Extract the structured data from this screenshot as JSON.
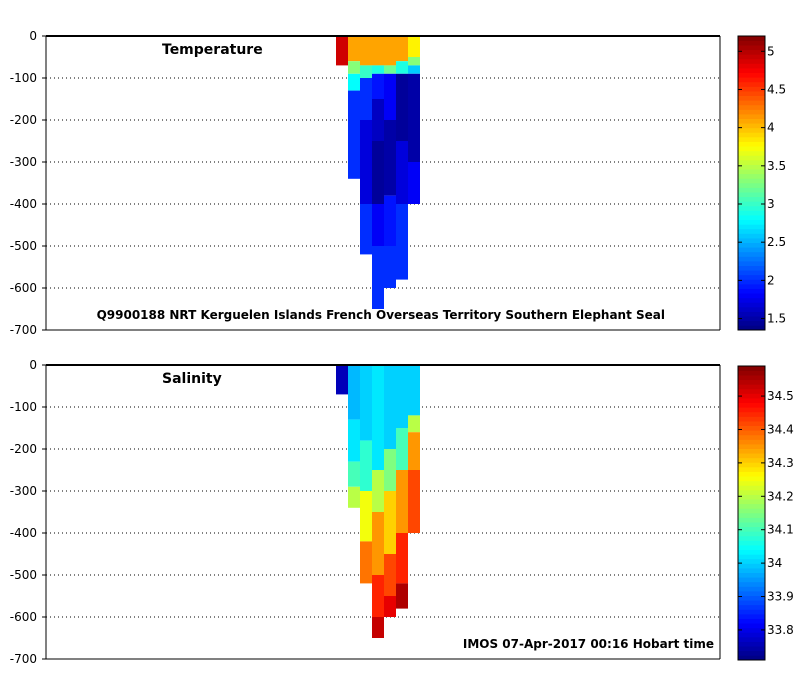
{
  "chart_data": [
    {
      "type": "heatmap",
      "title": "Temperature",
      "annotation": "Q9900188 NRT Kerguelen Islands French Overseas Territory Southern Elephant Seal",
      "ylabel": "",
      "ylim": [
        -700,
        0
      ],
      "yticks": [
        0,
        -100,
        -200,
        -300,
        -400,
        -500,
        -600,
        -700
      ],
      "colorbar": {
        "range": [
          1.35,
          5.2
        ],
        "ticks": [
          1.5,
          2,
          2.5,
          3,
          3.5,
          4,
          4.5,
          5
        ]
      },
      "profiles": [
        {
          "index": 0,
          "maxDepth": 70,
          "values": [
            [
              0,
              70,
              4.9
            ]
          ]
        },
        {
          "index": 1,
          "maxDepth": 340,
          "values": [
            [
              0,
              60,
              4.1
            ],
            [
              60,
              90,
              3.3
            ],
            [
              90,
              130,
              2.8
            ],
            [
              130,
              340,
              2.0
            ]
          ]
        },
        {
          "index": 2,
          "maxDepth": 520,
          "values": [
            [
              0,
              70,
              4.1
            ],
            [
              70,
              100,
              3.0
            ],
            [
              100,
              200,
              2.0
            ],
            [
              200,
              400,
              1.7
            ],
            [
              400,
              520,
              2.0
            ]
          ]
        },
        {
          "index": 3,
          "maxDepth": 650,
          "values": [
            [
              0,
              70,
              4.1
            ],
            [
              70,
              90,
              2.9
            ],
            [
              90,
              150,
              1.9
            ],
            [
              150,
              250,
              1.6
            ],
            [
              250,
              400,
              1.45
            ],
            [
              400,
              500,
              1.8
            ],
            [
              500,
              650,
              2.0
            ]
          ]
        },
        {
          "index": 4,
          "maxDepth": 600,
          "values": [
            [
              0,
              70,
              4.1
            ],
            [
              70,
              90,
              3.2
            ],
            [
              90,
              200,
              1.8
            ],
            [
              200,
              380,
              1.5
            ],
            [
              380,
              500,
              1.9
            ],
            [
              500,
              600,
              2.0
            ]
          ]
        },
        {
          "index": 5,
          "maxDepth": 580,
          "values": [
            [
              0,
              60,
              4.1
            ],
            [
              60,
              90,
              2.9
            ],
            [
              90,
              250,
              1.45
            ],
            [
              250,
              400,
              1.7
            ],
            [
              400,
              580,
              2.0
            ]
          ]
        },
        {
          "index": 6,
          "maxDepth": 400,
          "values": [
            [
              0,
              50,
              3.8
            ],
            [
              50,
              70,
              3.3
            ],
            [
              70,
              90,
              2.6
            ],
            [
              90,
              300,
              1.5
            ],
            [
              300,
              400,
              1.8
            ]
          ]
        }
      ]
    },
    {
      "type": "heatmap",
      "title": "Salinity",
      "annotation": "IMOS 07-Apr-2017 00:16 Hobart time",
      "ylabel": "",
      "ylim": [
        -700,
        0
      ],
      "yticks": [
        0,
        -100,
        -200,
        -300,
        -400,
        -500,
        -600,
        -700
      ],
      "colorbar": {
        "range": [
          33.71,
          34.59
        ],
        "ticks": [
          33.8,
          33.9,
          34,
          34.1,
          34.2,
          34.3,
          34.4,
          34.5
        ]
      },
      "profiles": [
        {
          "index": 0,
          "maxDepth": 70,
          "values": [
            [
              0,
              70,
              33.76
            ]
          ]
        },
        {
          "index": 1,
          "maxDepth": 340,
          "values": [
            [
              0,
              130,
              33.98
            ],
            [
              130,
              230,
              34.02
            ],
            [
              230,
              290,
              34.1
            ],
            [
              290,
              340,
              34.2
            ]
          ]
        },
        {
          "index": 2,
          "maxDepth": 520,
          "values": [
            [
              0,
              180,
              34.0
            ],
            [
              180,
              300,
              34.08
            ],
            [
              300,
              420,
              34.25
            ],
            [
              420,
              520,
              34.38
            ]
          ]
        },
        {
          "index": 3,
          "maxDepth": 650,
          "values": [
            [
              0,
              250,
              34.02
            ],
            [
              250,
              350,
              34.2
            ],
            [
              350,
              500,
              34.35
            ],
            [
              500,
              600,
              34.45
            ],
            [
              600,
              650,
              34.53
            ]
          ]
        },
        {
          "index": 4,
          "maxDepth": 600,
          "values": [
            [
              0,
              200,
              34.0
            ],
            [
              200,
              300,
              34.15
            ],
            [
              300,
              450,
              34.3
            ],
            [
              450,
              550,
              34.42
            ],
            [
              550,
              600,
              34.5
            ]
          ]
        },
        {
          "index": 5,
          "maxDepth": 580,
          "values": [
            [
              0,
              150,
              34.0
            ],
            [
              150,
              250,
              34.1
            ],
            [
              250,
              400,
              34.35
            ],
            [
              400,
              520,
              34.45
            ],
            [
              520,
              580,
              34.55
            ]
          ]
        },
        {
          "index": 6,
          "maxDepth": 400,
          "values": [
            [
              0,
              120,
              34.0
            ],
            [
              120,
              160,
              34.2
            ],
            [
              160,
              250,
              34.35
            ],
            [
              250,
              400,
              34.42
            ]
          ]
        }
      ]
    }
  ]
}
